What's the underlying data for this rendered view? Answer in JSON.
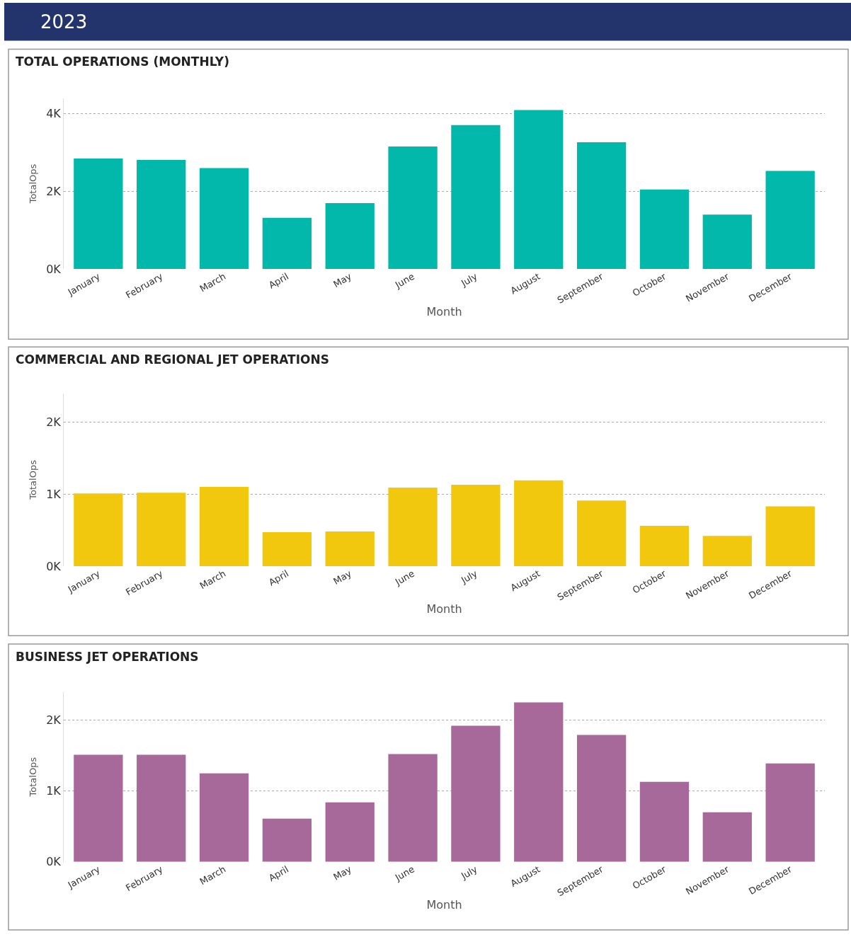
{
  "chart_data": [
    {
      "type": "other",
      "title": "2023",
      "color": "#22346b"
    },
    {
      "type": "bar",
      "title": "TOTAL OPERATIONS (MONTHLY)",
      "xlabel": "Month",
      "ylabel": "TotalOps",
      "color": "#01b8aa",
      "grid": "y",
      "categories": [
        "January",
        "February",
        "March",
        "April",
        "May",
        "June",
        "July",
        "August",
        "September",
        "October",
        "November",
        "December"
      ],
      "values": [
        2850,
        2810,
        2600,
        1320,
        1700,
        3160,
        3710,
        4100,
        3270,
        2050,
        1400,
        2530
      ],
      "ylim": [
        0,
        4400
      ],
      "yticks": [
        {
          "value": 0,
          "label": "0K"
        },
        {
          "value": 2000,
          "label": "2K"
        },
        {
          "value": 4000,
          "label": "4K"
        }
      ]
    },
    {
      "type": "bar",
      "title": "COMMERCIAL AND REGIONAL JET OPERATIONS",
      "xlabel": "Month",
      "ylabel": "TotalOps",
      "color": "#f2c80f",
      "grid": "y",
      "categories": [
        "January",
        "February",
        "March",
        "April",
        "May",
        "June",
        "July",
        "August",
        "September",
        "October",
        "November",
        "December"
      ],
      "values": [
        1010,
        1020,
        1100,
        470,
        480,
        1090,
        1130,
        1190,
        910,
        560,
        420,
        830
      ],
      "ylim": [
        0,
        2400
      ],
      "yticks": [
        {
          "value": 0,
          "label": "0K"
        },
        {
          "value": 1000,
          "label": "1K"
        },
        {
          "value": 2000,
          "label": "2K"
        }
      ]
    },
    {
      "type": "bar",
      "title": "BUSINESS JET OPERATIONS",
      "xlabel": "Month",
      "ylabel": "TotalOps",
      "color": "#a66999",
      "grid": "y",
      "categories": [
        "January",
        "February",
        "March",
        "April",
        "May",
        "June",
        "July",
        "August",
        "September",
        "October",
        "November",
        "December"
      ],
      "values": [
        1510,
        1510,
        1250,
        610,
        840,
        1520,
        1920,
        2250,
        1790,
        1130,
        700,
        1390
      ],
      "ylim": [
        0,
        2400
      ],
      "yticks": [
        {
          "value": 0,
          "label": "0K"
        },
        {
          "value": 1000,
          "label": "1K"
        },
        {
          "value": 2000,
          "label": "2K"
        }
      ]
    }
  ]
}
